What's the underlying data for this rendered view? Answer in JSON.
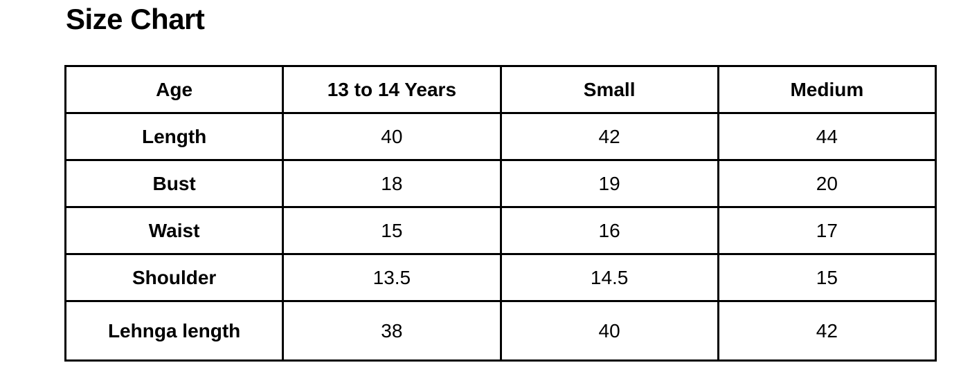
{
  "page": {
    "title": "Size Chart",
    "background_color": "#ffffff",
    "text_color": "#000000",
    "table_border_color": "#000000"
  },
  "table": {
    "headers": [
      "Age",
      "13 to 14 Years",
      "Small",
      "Medium"
    ],
    "rows": [
      {
        "label": "Length",
        "values": [
          "40",
          "42",
          "44"
        ]
      },
      {
        "label": "Bust",
        "values": [
          "18",
          "19",
          "20"
        ]
      },
      {
        "label": "Waist",
        "values": [
          "15",
          "16",
          "17"
        ]
      },
      {
        "label": "Shoulder",
        "values": [
          "13.5",
          "14.5",
          "15"
        ]
      },
      {
        "label": "Lehnga length",
        "values": [
          "38",
          "40",
          "42"
        ]
      }
    ]
  }
}
